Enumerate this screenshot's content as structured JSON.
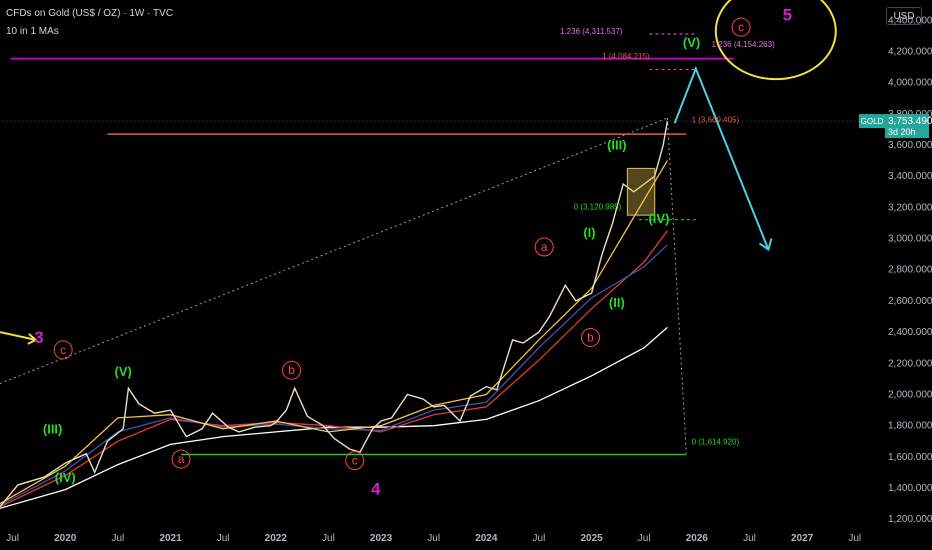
{
  "header": {
    "title": "CFDs on Gold (US$ / OZ) · 1W · TVC",
    "subtitle": "10 in 1 MAs",
    "currency_button": "USD"
  },
  "colors": {
    "background": "#000000",
    "candles": "#e8e0c0",
    "fib_line": "#c000c0",
    "resistance_line": "#e05a4a",
    "support_line": "#22cc22",
    "projection": "#4dd0e1",
    "wave_green": "#22dd22",
    "wave_red": "#ff4444",
    "wave_magenta": "#cc22cc",
    "highlight_circle": "#f5e040",
    "price_badge": "#26a69a"
  },
  "chart_data": {
    "type": "line",
    "title": "CFDs on Gold (US$ / OZ) · 1W · TVC",
    "symbol": "GOLD",
    "ylim": [
      1150,
      4530
    ],
    "y_ticks": [
      1200,
      1400,
      1600,
      1800,
      2000,
      2200,
      2400,
      2600,
      2800,
      3000,
      3200,
      3400,
      3600,
      3800,
      4000,
      4200,
      4400
    ],
    "y_tick_labels": [
      "1,200.000",
      "1,400.000",
      "1,600.000",
      "1,800.000",
      "2,000.000",
      "2,200.000",
      "2,400.000",
      "2,600.000",
      "2,800.000",
      "3,000.000",
      "3,200.000",
      "3,400.000",
      "3,600.000",
      "3,800.000",
      "4,000.000",
      "4,200.000",
      "4,400.000"
    ],
    "xlim": [
      2019.38,
      2027.74
    ],
    "x_ticks": [
      {
        "t": 2019.5,
        "label": "Jul"
      },
      {
        "t": 2020.0,
        "label": "2020"
      },
      {
        "t": 2020.5,
        "label": "Jul"
      },
      {
        "t": 2021.0,
        "label": "2021"
      },
      {
        "t": 2021.5,
        "label": "Jul"
      },
      {
        "t": 2022.0,
        "label": "2022"
      },
      {
        "t": 2022.5,
        "label": "Jul"
      },
      {
        "t": 2023.0,
        "label": "2023"
      },
      {
        "t": 2023.5,
        "label": "Jul"
      },
      {
        "t": 2024.0,
        "label": "2024"
      },
      {
        "t": 2024.5,
        "label": "Jul"
      },
      {
        "t": 2025.0,
        "label": "2025"
      },
      {
        "t": 2025.5,
        "label": "Jul"
      },
      {
        "t": 2026.0,
        "label": "2026"
      },
      {
        "t": 2026.5,
        "label": "Jul"
      },
      {
        "t": 2027.0,
        "label": "2027"
      },
      {
        "t": 2027.5,
        "label": "Jul"
      }
    ],
    "grid": false,
    "series": [
      {
        "values": [
          [
            2019.38,
            1280
          ],
          [
            2019.55,
            1420
          ],
          [
            2019.8,
            1470
          ],
          [
            2020.0,
            1560
          ],
          [
            2020.2,
            1620
          ],
          [
            2020.28,
            1500
          ],
          [
            2020.4,
            1700
          ],
          [
            2020.55,
            1780
          ],
          [
            2020.6,
            2040
          ],
          [
            2020.7,
            1940
          ],
          [
            2020.85,
            1880
          ],
          [
            2021.0,
            1900
          ],
          [
            2021.15,
            1730
          ],
          [
            2021.3,
            1780
          ],
          [
            2021.4,
            1880
          ],
          [
            2021.55,
            1790
          ],
          [
            2021.65,
            1760
          ],
          [
            2021.8,
            1790
          ],
          [
            2021.95,
            1800
          ],
          [
            2022.0,
            1820
          ],
          [
            2022.1,
            1900
          ],
          [
            2022.18,
            2040
          ],
          [
            2022.3,
            1860
          ],
          [
            2022.45,
            1800
          ],
          [
            2022.55,
            1720
          ],
          [
            2022.7,
            1650
          ],
          [
            2022.8,
            1630
          ],
          [
            2022.92,
            1780
          ],
          [
            2023.0,
            1830
          ],
          [
            2023.1,
            1850
          ],
          [
            2023.25,
            2000
          ],
          [
            2023.4,
            1970
          ],
          [
            2023.5,
            1920
          ],
          [
            2023.6,
            1930
          ],
          [
            2023.75,
            1830
          ],
          [
            2023.85,
            1990
          ],
          [
            2024.0,
            2050
          ],
          [
            2024.1,
            2030
          ],
          [
            2024.25,
            2350
          ],
          [
            2024.35,
            2330
          ],
          [
            2024.5,
            2400
          ],
          [
            2024.6,
            2500
          ],
          [
            2024.75,
            2700
          ],
          [
            2024.85,
            2600
          ],
          [
            2025.0,
            2650
          ],
          [
            2025.1,
            2900
          ],
          [
            2025.2,
            3100
          ],
          [
            2025.3,
            3350
          ],
          [
            2025.4,
            3300
          ],
          [
            2025.5,
            3350
          ],
          [
            2025.6,
            3400
          ],
          [
            2025.68,
            3600
          ],
          [
            2025.72,
            3753
          ]
        ]
      }
    ],
    "moving_averages": [
      {
        "color": "#ffffff",
        "values": [
          [
            2019.38,
            1270
          ],
          [
            2020.0,
            1390
          ],
          [
            2020.5,
            1550
          ],
          [
            2021.0,
            1680
          ],
          [
            2021.5,
            1730
          ],
          [
            2022.0,
            1760
          ],
          [
            2022.5,
            1790
          ],
          [
            2023.0,
            1790
          ],
          [
            2023.5,
            1800
          ],
          [
            2024.0,
            1840
          ],
          [
            2024.5,
            1960
          ],
          [
            2025.0,
            2120
          ],
          [
            2025.5,
            2300
          ],
          [
            2025.72,
            2430
          ]
        ]
      },
      {
        "color": "#e53935",
        "values": [
          [
            2019.38,
            1280
          ],
          [
            2020.0,
            1480
          ],
          [
            2020.5,
            1700
          ],
          [
            2021.0,
            1840
          ],
          [
            2021.5,
            1800
          ],
          [
            2022.0,
            1820
          ],
          [
            2022.5,
            1800
          ],
          [
            2023.0,
            1760
          ],
          [
            2023.5,
            1870
          ],
          [
            2024.0,
            1920
          ],
          [
            2024.5,
            2220
          ],
          [
            2025.0,
            2550
          ],
          [
            2025.5,
            2850
          ],
          [
            2025.72,
            3050
          ]
        ]
      },
      {
        "color": "#3f51b5",
        "values": [
          [
            2019.38,
            1290
          ],
          [
            2020.0,
            1510
          ],
          [
            2020.5,
            1760
          ],
          [
            2021.0,
            1850
          ],
          [
            2021.5,
            1790
          ],
          [
            2022.0,
            1810
          ],
          [
            2022.5,
            1780
          ],
          [
            2023.0,
            1770
          ],
          [
            2023.5,
            1900
          ],
          [
            2024.0,
            1950
          ],
          [
            2024.5,
            2300
          ],
          [
            2025.0,
            2620
          ],
          [
            2025.5,
            2820
          ],
          [
            2025.72,
            2960
          ]
        ]
      },
      {
        "color": "#f5c242",
        "values": [
          [
            2019.38,
            1300
          ],
          [
            2020.0,
            1540
          ],
          [
            2020.5,
            1850
          ],
          [
            2021.0,
            1870
          ],
          [
            2021.5,
            1780
          ],
          [
            2022.0,
            1830
          ],
          [
            2022.5,
            1760
          ],
          [
            2023.0,
            1800
          ],
          [
            2023.5,
            1930
          ],
          [
            2024.0,
            2000
          ],
          [
            2024.5,
            2350
          ],
          [
            2025.0,
            2680
          ],
          [
            2025.5,
            3250
          ],
          [
            2025.72,
            3500
          ]
        ]
      }
    ],
    "horizontal_lines": [
      {
        "value": 4154.263,
        "color": "#c000c0",
        "x_start": 2019.48,
        "x_end": 2026.35
      },
      {
        "value": 3669.405,
        "color": "#e05a4a",
        "x_start": 2020.4,
        "x_end": 2025.9
      },
      {
        "value": 1614.92,
        "color": "#22cc22",
        "x_start": 2021.1,
        "x_end": 2025.9
      }
    ],
    "fib_labels": [
      {
        "text": "1.236 (4,311.537)",
        "t": 2024.7,
        "y": 4311.537,
        "color": "#e070e0"
      },
      {
        "text": "1.236 (4,154.263)",
        "t": 2026.14,
        "y": 4230,
        "color": "#e070e0"
      },
      {
        "text": "1 (4,084.215)",
        "t": 2025.1,
        "y": 4150,
        "color": "#e05a4a"
      },
      {
        "text": "1 (3,669.405)",
        "t": 2025.95,
        "y": 3745,
        "color": "#e05a4a"
      },
      {
        "text": "0 (3,120.985)",
        "t": 2024.83,
        "y": 3185,
        "color": "#22dd22"
      },
      {
        "text": "0 (1,614.920)",
        "t": 2025.95,
        "y": 1680,
        "color": "#22dd22"
      }
    ],
    "wave_labels": [
      {
        "text": "3",
        "t": 2019.75,
        "y": 2330,
        "color": "#cc22cc",
        "style": "plain"
      },
      {
        "text": "c",
        "t": 2019.98,
        "y": 2260,
        "color": "#ff4444",
        "style": "circle"
      },
      {
        "text": "(V)",
        "t": 2020.55,
        "y": 2120,
        "color": "#22dd22",
        "style": "plain"
      },
      {
        "text": "(III)",
        "t": 2019.88,
        "y": 1750,
        "color": "#22dd22",
        "style": "plain"
      },
      {
        "text": "(IV)",
        "t": 2020.0,
        "y": 1440,
        "color": "#22dd22",
        "style": "plain"
      },
      {
        "text": "a",
        "t": 2021.1,
        "y": 1560,
        "color": "#ff4444",
        "style": "circle"
      },
      {
        "text": "b",
        "t": 2022.15,
        "y": 2130,
        "color": "#ff4444",
        "style": "circle"
      },
      {
        "text": "c",
        "t": 2022.75,
        "y": 1550,
        "color": "#ff4444",
        "style": "circle"
      },
      {
        "text": "4",
        "t": 2022.95,
        "y": 1360,
        "color": "#cc22cc",
        "style": "plain"
      },
      {
        "text": "a",
        "t": 2024.55,
        "y": 2920,
        "color": "#ff4444",
        "style": "circle"
      },
      {
        "text": "b",
        "t": 2024.99,
        "y": 2340,
        "color": "#ff4444",
        "style": "circle"
      },
      {
        "text": "(I)",
        "t": 2024.98,
        "y": 3010,
        "color": "#22dd22",
        "style": "plain"
      },
      {
        "text": "(II)",
        "t": 2025.24,
        "y": 2560,
        "color": "#22dd22",
        "style": "plain"
      },
      {
        "text": "(III)",
        "t": 2025.24,
        "y": 3570,
        "color": "#22dd22",
        "style": "plain"
      },
      {
        "text": "(IV)",
        "t": 2025.64,
        "y": 3100,
        "color": "#22dd22",
        "style": "plain"
      },
      {
        "text": "(V)",
        "t": 2025.95,
        "y": 4230,
        "color": "#22dd22",
        "style": "plain"
      },
      {
        "text": "c",
        "t": 2026.42,
        "y": 4330,
        "color": "#ff4444",
        "style": "circle"
      },
      {
        "text": "5",
        "t": 2026.86,
        "y": 4400,
        "color": "#cc22cc",
        "style": "plain"
      }
    ],
    "projection_path": [
      [
        2025.79,
        3740
      ],
      [
        2025.99,
        4090
      ],
      [
        2026.68,
        2930
      ]
    ],
    "arrow_left": {
      "t_start": 2019.38,
      "y_start": 2400,
      "t_end": 2019.72,
      "y_end": 2350
    },
    "current_price": {
      "label": "GOLD",
      "value": "3,753.490",
      "countdown": "3d 20h",
      "y": 3753.49
    }
  }
}
